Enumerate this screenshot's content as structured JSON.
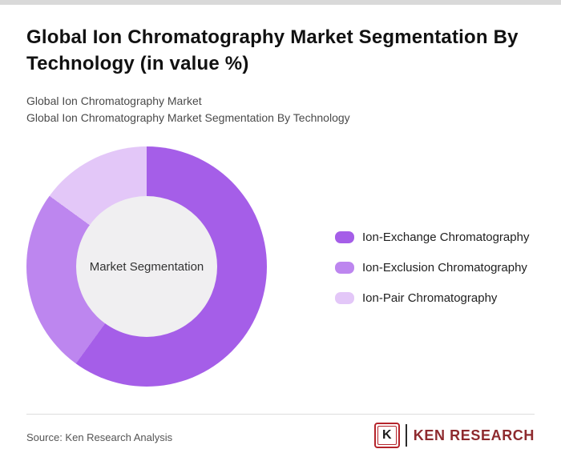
{
  "header": {
    "title": "Global Ion Chromatography Market Segmentation By Technology (in value %)",
    "subtitle_line1": "Global Ion Chromatography Market",
    "subtitle_line2": "Global Ion Chromatography Market Segmentation By Technology"
  },
  "chart_data": {
    "type": "pie",
    "donut": true,
    "title": "Global Ion Chromatography Market Segmentation By Technology (in value %)",
    "center_label": "Market Segmentation",
    "value_labels_shown": false,
    "legend_position": "right",
    "start_angle_deg": 0,
    "direction": "clockwise",
    "segments": [
      {
        "label": "Ion-Exchange Chromatography",
        "value": 60,
        "color": "#a55ee8"
      },
      {
        "label": "Ion-Exclusion Chromatography",
        "value": 25,
        "color": "#bd86ef"
      },
      {
        "label": "Ion-Pair Chromatography",
        "value": 15,
        "color": "#e3c7f8"
      }
    ]
  },
  "footer": {
    "source": "Source: Ken Research Analysis",
    "logo": {
      "k": "K",
      "name": "KEN RESEARCH"
    }
  },
  "colors": {
    "center_circle": "#f0eff1",
    "accent_red": "#b5242b"
  }
}
